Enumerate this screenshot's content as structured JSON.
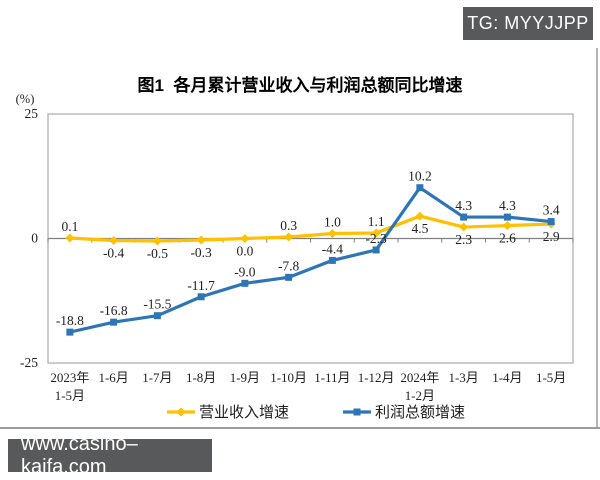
{
  "overlays": {
    "tg_badge": "TG: MYYJJPP",
    "watermark": "www.casino–kaifa.com"
  },
  "colors": {
    "badge_bg": "#58595b",
    "revenue_line": "#FFC000",
    "profit_line": "#2E75B6",
    "axis": "#808080",
    "plot_border": "#ABABAB",
    "label_text": "#1f1f1f"
  },
  "chart_data": {
    "type": "line",
    "title": "图1  各月累计营业收入与利润总额同比增速",
    "unit_label": "(%)",
    "ylim": [
      -25,
      25
    ],
    "y_ticks": [
      25,
      0,
      -25
    ],
    "grid": false,
    "legend_position": "bottom",
    "categories": [
      "2023年\n1-5月",
      "1-6月",
      "1-7月",
      "1-8月",
      "1-9月",
      "1-10月",
      "1-11月",
      "1-12月",
      "2024年\n1-2月",
      "1-3月",
      "1-4月",
      "1-5月"
    ],
    "series": [
      {
        "name": "营业收入增速",
        "color": "#FFC000",
        "marker": "diamond",
        "values": [
          0.1,
          -0.4,
          -0.5,
          -0.3,
          0.0,
          0.3,
          1.0,
          1.1,
          4.5,
          2.3,
          2.6,
          2.9
        ],
        "label_positions": [
          "above",
          "below",
          "below",
          "below",
          "below",
          "above",
          "above",
          "above",
          "below",
          "below",
          "below",
          "below"
        ]
      },
      {
        "name": "利润总额增速",
        "color": "#2E75B6",
        "marker": "square",
        "values": [
          -18.8,
          -16.8,
          -15.5,
          -11.7,
          -9.0,
          -7.8,
          -4.4,
          -2.3,
          10.2,
          4.3,
          4.3,
          3.4
        ],
        "label_positions": [
          "above",
          "above",
          "above",
          "above",
          "above",
          "above",
          "above",
          "above",
          "above",
          "above",
          "above",
          "above"
        ]
      }
    ]
  }
}
